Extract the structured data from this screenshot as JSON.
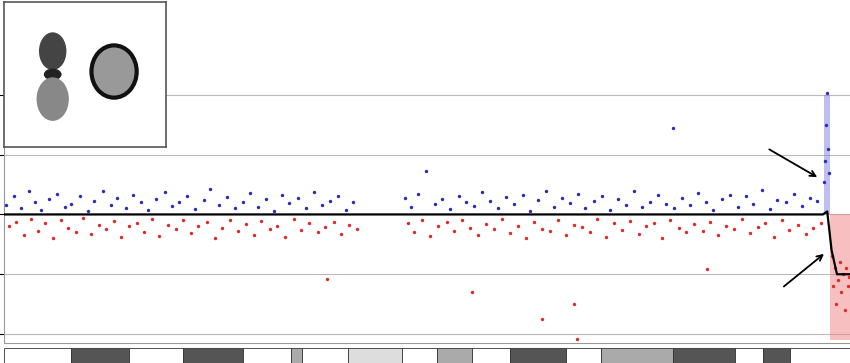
{
  "chart_data": {
    "type": "scatter",
    "xlim": [
      0,
      78
    ],
    "ylim": [
      -2.15,
      2.25
    ],
    "xticks": [],
    "yticks": [
      -2,
      -1,
      0,
      1,
      2
    ],
    "grid": true,
    "tick_labels": false,
    "series": [
      {
        "color": "#2b2bb8",
        "marker": "dot",
        "x": [
          0.2,
          0.9,
          1.5,
          2.3,
          2.8,
          3.4,
          4.1,
          4.9,
          5.6,
          6.2,
          7.0,
          7.7,
          8.3,
          9.1,
          9.8,
          10.4,
          11.2,
          11.9,
          12.6,
          13.3,
          14.0,
          14.8,
          15.5,
          16.1,
          16.9,
          17.6,
          18.4,
          19.0,
          19.8,
          20.5,
          21.3,
          22.0,
          22.7,
          23.4,
          24.1,
          24.9,
          25.6,
          26.3,
          27.1,
          27.8,
          28.6,
          29.3,
          30.0,
          30.8,
          31.5,
          32.2,
          37.0,
          37.5,
          38.2,
          38.9,
          39.7,
          40.4,
          41.1,
          41.9,
          42.6,
          43.3,
          44.1,
          44.8,
          45.5,
          46.3,
          47.0,
          47.8,
          48.5,
          49.2,
          50.0,
          50.7,
          51.4,
          52.2,
          52.9,
          53.6,
          54.4,
          55.1,
          55.9,
          56.6,
          57.3,
          58.1,
          58.8,
          59.6,
          60.3,
          61.0,
          61.7,
          61.8,
          62.5,
          63.2,
          64.0,
          64.7,
          65.4,
          66.2,
          66.9,
          67.7,
          68.4,
          69.1,
          69.9,
          70.6,
          71.3,
          72.1,
          72.8,
          73.6,
          74.3,
          75.0,
          75.6,
          75.7,
          75.8,
          75.9,
          76.0,
          76.1
        ],
        "values": [
          0.15,
          0.3,
          0.1,
          0.4,
          0.2,
          0.08,
          0.25,
          0.35,
          0.12,
          0.18,
          0.3,
          0.05,
          0.22,
          0.4,
          0.15,
          0.28,
          0.1,
          0.33,
          0.2,
          0.07,
          0.26,
          0.38,
          0.14,
          0.2,
          0.31,
          0.09,
          0.24,
          0.42,
          0.16,
          0.29,
          0.11,
          0.2,
          0.36,
          0.13,
          0.25,
          0.06,
          0.32,
          0.19,
          0.27,
          0.1,
          0.38,
          0.15,
          0.23,
          0.3,
          0.08,
          0.21,
          0.28,
          0.12,
          0.34,
          0.72,
          0.18,
          0.26,
          0.09,
          0.31,
          0.2,
          0.14,
          0.37,
          0.22,
          0.1,
          0.29,
          0.17,
          0.33,
          0.06,
          0.24,
          0.4,
          0.13,
          0.27,
          0.19,
          0.35,
          0.11,
          0.23,
          0.3,
          0.08,
          0.26,
          0.16,
          0.39,
          0.12,
          0.21,
          0.32,
          0.18,
          1.45,
          0.1,
          0.28,
          0.15,
          0.36,
          0.2,
          0.07,
          0.25,
          0.33,
          0.13,
          0.3,
          0.18,
          0.41,
          0.09,
          0.24,
          0.2,
          0.34,
          0.14,
          0.27,
          0.22,
          0.55,
          0.9,
          1.5,
          2.03,
          1.1,
          0.7
        ]
      },
      {
        "color": "#dd2b2b",
        "marker": "dot",
        "x": [
          0.4,
          1.1,
          1.8,
          2.5,
          3.1,
          3.8,
          4.5,
          5.2,
          5.9,
          6.6,
          7.3,
          8.0,
          8.7,
          9.4,
          10.1,
          10.8,
          11.5,
          12.2,
          12.9,
          13.6,
          14.3,
          15.1,
          15.8,
          16.5,
          17.2,
          17.9,
          18.7,
          19.4,
          20.1,
          20.8,
          21.6,
          22.3,
          23.0,
          23.7,
          24.5,
          25.2,
          25.9,
          26.7,
          27.4,
          28.1,
          28.9,
          29.6,
          29.8,
          30.4,
          31.1,
          31.8,
          32.5,
          37.2,
          37.8,
          38.5,
          39.3,
          40.0,
          40.8,
          41.5,
          42.2,
          43.0,
          43.1,
          43.7,
          44.4,
          45.2,
          45.9,
          46.6,
          47.4,
          48.1,
          48.9,
          49.6,
          49.6,
          50.3,
          51.1,
          51.8,
          52.5,
          52.5,
          52.8,
          53.3,
          54.0,
          54.7,
          55.5,
          56.2,
          57.0,
          57.7,
          58.5,
          59.2,
          59.9,
          60.7,
          61.4,
          62.2,
          62.9,
          63.6,
          64.4,
          64.8,
          65.1,
          65.8,
          66.6,
          67.3,
          68.0,
          68.8,
          69.5,
          70.2,
          71.0,
          71.7,
          72.4,
          73.2,
          73.9,
          74.6,
          75.3,
          76.3,
          76.45,
          76.6,
          76.75,
          76.9,
          77.05,
          77.2,
          77.35,
          77.5,
          77.65,
          77.8,
          77.95
        ],
        "values": [
          -0.2,
          -0.12,
          -0.35,
          -0.08,
          -0.27,
          -0.15,
          -0.4,
          -0.1,
          -0.23,
          -0.3,
          -0.06,
          -0.33,
          -0.18,
          -0.25,
          -0.11,
          -0.38,
          -0.2,
          -0.14,
          -0.29,
          -0.07,
          -0.36,
          -0.17,
          -0.24,
          -0.1,
          -0.31,
          -0.2,
          -0.13,
          -0.4,
          -0.22,
          -0.09,
          -0.28,
          -0.16,
          -0.34,
          -0.11,
          -0.25,
          -0.19,
          -0.37,
          -0.08,
          -0.26,
          -0.14,
          -0.3,
          -0.21,
          -1.08,
          -0.12,
          -0.33,
          -0.18,
          -0.24,
          -0.15,
          -0.3,
          -0.09,
          -0.36,
          -0.2,
          -0.13,
          -0.27,
          -0.1,
          -0.22,
          -1.3,
          -0.35,
          -0.16,
          -0.25,
          -0.08,
          -0.31,
          -0.19,
          -0.4,
          -0.12,
          -0.24,
          -1.75,
          -0.28,
          -0.1,
          -0.34,
          -0.17,
          -1.5,
          -2.08,
          -0.21,
          -0.29,
          -0.07,
          -0.37,
          -0.15,
          -0.26,
          -0.11,
          -0.32,
          -0.2,
          -0.14,
          -0.39,
          -0.09,
          -0.23,
          -0.3,
          -0.16,
          -0.27,
          -0.92,
          -0.12,
          -0.35,
          -0.19,
          -0.24,
          -0.08,
          -0.31,
          -0.21,
          -0.14,
          -0.38,
          -0.1,
          -0.26,
          -0.18,
          -0.33,
          -0.22,
          -0.15,
          -0.7,
          -1.2,
          -0.9,
          -1.5,
          -1.1,
          -0.8,
          -1.3,
          -1.0,
          -1.6,
          -0.9,
          -1.2,
          -1.05
        ]
      },
      {
        "type": "line",
        "color": "#000000",
        "line_style": "solid",
        "x": [
          0,
          75.5,
          75.9,
          76.3,
          76.8,
          78
        ],
        "values": [
          0,
          0,
          0.05,
          -0.6,
          -1.0,
          -1.0
        ]
      }
    ],
    "highlights": [
      {
        "x": [
          75.6,
          76.2
        ],
        "y": [
          0,
          2
        ],
        "color": "#8080e0"
      },
      {
        "x": [
          76.2,
          78
        ],
        "y": [
          0,
          -2.1
        ],
        "color": "#f08080"
      }
    ],
    "ideogram_bands": [
      {
        "start": 0,
        "end": 6.2,
        "color": "#ffffff"
      },
      {
        "start": 6.2,
        "end": 11.5,
        "color": "#555555"
      },
      {
        "start": 11.5,
        "end": 16.5,
        "color": "#ffffff"
      },
      {
        "start": 16.5,
        "end": 22.0,
        "color": "#555555"
      },
      {
        "start": 22.0,
        "end": 26.4,
        "color": "#ffffff"
      },
      {
        "start": 26.4,
        "end": 27.5,
        "color": "#aaaaaa"
      },
      {
        "start": 27.5,
        "end": 31.7,
        "color": "#ffffff"
      },
      {
        "start": 31.7,
        "end": 36.7,
        "color": "#dddddd"
      },
      {
        "start": 36.7,
        "end": 39.9,
        "color": "#ffffff"
      },
      {
        "start": 39.9,
        "end": 43.1,
        "color": "#aaaaaa"
      },
      {
        "start": 43.1,
        "end": 46.6,
        "color": "#ffffff"
      },
      {
        "start": 46.6,
        "end": 51.8,
        "color": "#555555"
      },
      {
        "start": 51.8,
        "end": 55.0,
        "color": "#ffffff"
      },
      {
        "start": 55.0,
        "end": 61.7,
        "color": "#aaaaaa"
      },
      {
        "start": 61.7,
        "end": 67.4,
        "color": "#555555"
      },
      {
        "start": 67.4,
        "end": 70.0,
        "color": "#ffffff"
      },
      {
        "start": 70.0,
        "end": 72.5,
        "color": "#555555"
      },
      {
        "start": 72.5,
        "end": 78,
        "color": "#ffffff"
      }
    ]
  }
}
